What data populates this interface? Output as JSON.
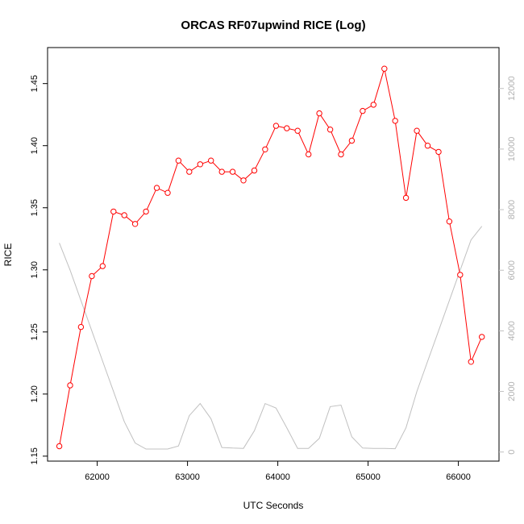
{
  "chart_data": {
    "type": "line",
    "title": "ORCAS RF07upwind RICE (Log)",
    "xlabel": "UTC Seconds",
    "ylabel": "RICE",
    "xlim": [
      61450,
      66450
    ],
    "ylim": [
      1.146,
      1.479
    ],
    "y2lim": [
      -300,
      13350
    ],
    "x_ticks": [
      62000,
      63000,
      64000,
      65000,
      66000
    ],
    "y_ticks": [
      1.15,
      1.2,
      1.25,
      1.3,
      1.35,
      1.4,
      1.45
    ],
    "y_tick_labels": [
      "1.15",
      "1.20",
      "1.25",
      "1.30",
      "1.35",
      "1.40",
      "1.45"
    ],
    "y2_ticks": [
      0,
      2000,
      4000,
      6000,
      8000,
      10000,
      12000
    ],
    "grid": false,
    "colors": {
      "primary": "#ff0000",
      "secondary": "#c0c0c0"
    },
    "series": [
      {
        "axis": "left",
        "style": "line-points",
        "x": [
          61580,
          61700,
          61820,
          61940,
          62060,
          62180,
          62300,
          62420,
          62540,
          62660,
          62780,
          62900,
          63020,
          63140,
          63260,
          63380,
          63500,
          63620,
          63740,
          63860,
          63980,
          64100,
          64220,
          64340,
          64460,
          64580,
          64700,
          64820,
          64940,
          65060,
          65180,
          65300,
          65420,
          65540,
          65660,
          65780,
          65900,
          66020,
          66140,
          66260
        ],
        "values": [
          1.158,
          1.207,
          1.254,
          1.295,
          1.303,
          1.347,
          1.344,
          1.337,
          1.347,
          1.366,
          1.362,
          1.388,
          1.379,
          1.385,
          1.388,
          1.379,
          1.379,
          1.372,
          1.38,
          1.397,
          1.416,
          1.414,
          1.412,
          1.393,
          1.426,
          1.413,
          1.393,
          1.404,
          1.428,
          1.433,
          1.462,
          1.42,
          1.358,
          1.412,
          1.4,
          1.395,
          1.339,
          1.296,
          1.226,
          1.246
        ]
      },
      {
        "axis": "right",
        "style": "line",
        "x": [
          61580,
          61700,
          61820,
          61940,
          62060,
          62180,
          62300,
          62420,
          62540,
          62660,
          62780,
          62900,
          63020,
          63140,
          63260,
          63380,
          63500,
          63620,
          63740,
          63860,
          63980,
          64100,
          64220,
          64340,
          64460,
          64580,
          64700,
          64820,
          64940,
          65060,
          65180,
          65300,
          65420,
          65540,
          65660,
          65780,
          65900,
          66020,
          66140,
          66260
        ],
        "values": [
          6900,
          6000,
          5000,
          4000,
          3000,
          2000,
          1000,
          300,
          100,
          100,
          100,
          200,
          1200,
          1600,
          1100,
          150,
          130,
          120,
          700,
          1600,
          1450,
          800,
          120,
          120,
          450,
          1500,
          1550,
          500,
          130,
          120,
          120,
          110,
          800,
          2000,
          3000,
          4000,
          5000,
          6000,
          7000,
          7450
        ]
      }
    ]
  }
}
